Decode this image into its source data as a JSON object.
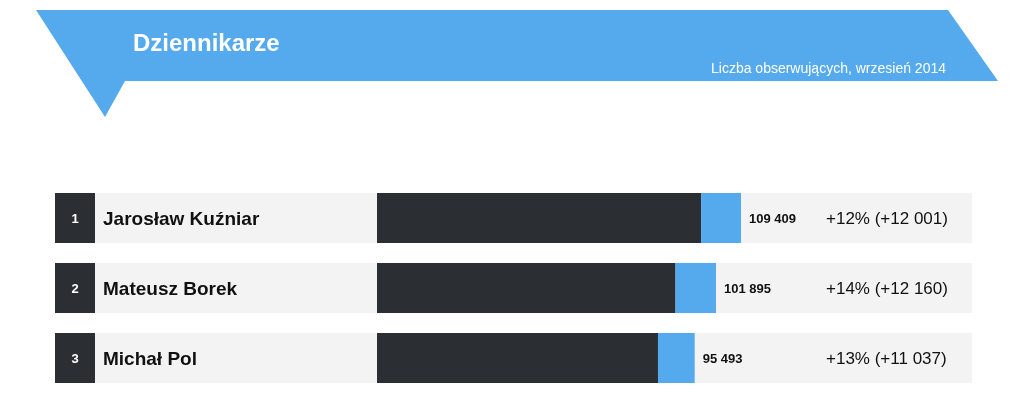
{
  "chart_data": {
    "type": "bar",
    "title": "Dziennikarze",
    "subtitle": "Liczba obserwujących, wrzesień 2014",
    "orientation": "horizontal",
    "stacked": true,
    "categories": [
      "Jarosław Kuźniar",
      "Mateusz Borek",
      "Michał Pol"
    ],
    "series": [
      {
        "color": "#2b2f34",
        "values": [
          97408,
          89735,
          84456
        ]
      },
      {
        "color": "#55aaee",
        "values": [
          12001,
          12160,
          11037
        ],
        "value_labels": [
          "+12% (+12 001)",
          "+14% (+12 160)",
          "+13% (+11 037)"
        ]
      }
    ],
    "totals": [
      "109 409",
      "101 895",
      "95 493"
    ],
    "annotations": [
      "1",
      "2",
      "3"
    ]
  }
}
